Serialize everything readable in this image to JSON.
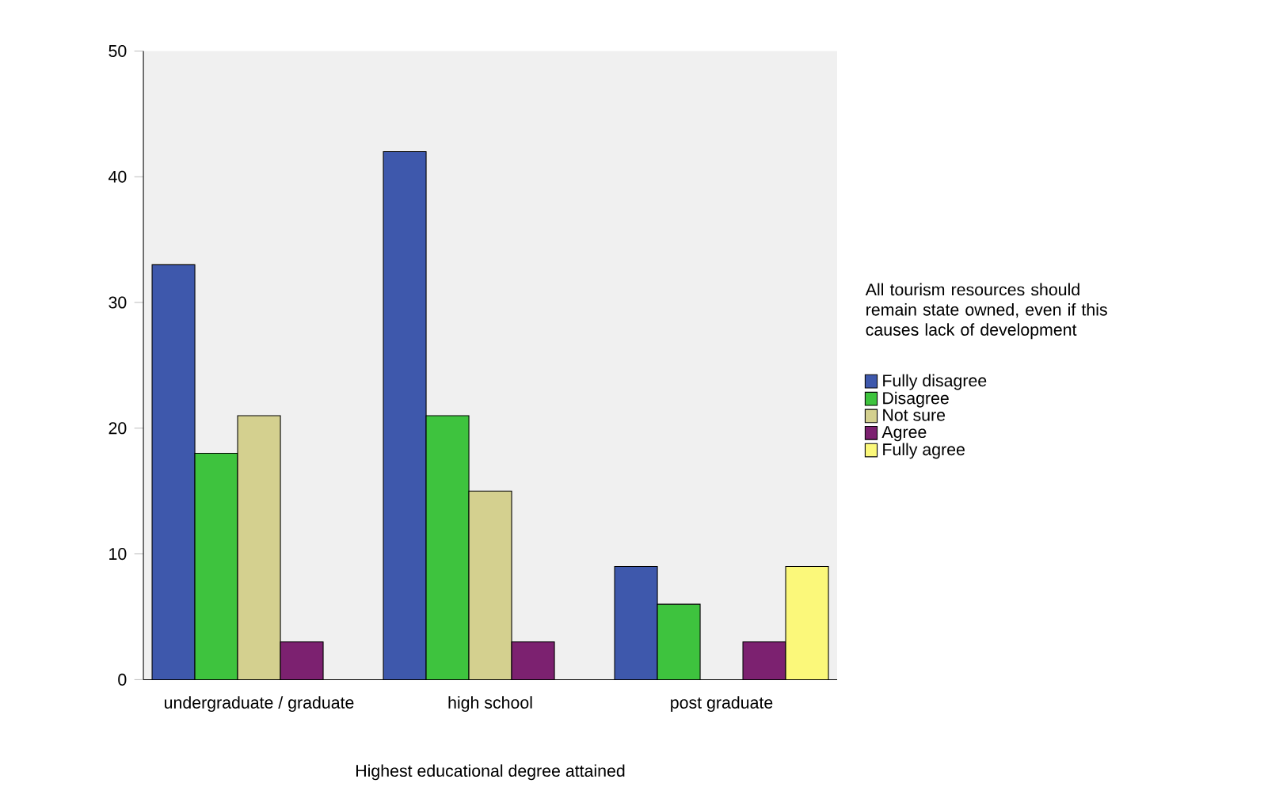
{
  "chart_data": {
    "type": "bar",
    "xlabel": "Highest educational degree attained",
    "legend_title": "All tourism resources should remain state owned, even if this causes lack of development",
    "categories": [
      "undergraduate / graduate",
      "high school",
      "post graduate"
    ],
    "ylim": [
      0,
      50
    ],
    "yticks": [
      0,
      10,
      20,
      30,
      40,
      50
    ],
    "legend": "right",
    "series": [
      {
        "name": "Fully disagree",
        "color": "#3e58ac",
        "values": [
          33,
          42,
          9
        ]
      },
      {
        "name": "Disagree",
        "color": "#3ec33e",
        "values": [
          18,
          21,
          6
        ]
      },
      {
        "name": "Not sure",
        "color": "#d4d08f",
        "values": [
          21,
          15,
          null
        ]
      },
      {
        "name": "Agree",
        "color": "#7c2170",
        "values": [
          3,
          3,
          3
        ]
      },
      {
        "name": "Fully agree",
        "color": "#fbf87a",
        "values": [
          null,
          null,
          9
        ]
      }
    ]
  }
}
